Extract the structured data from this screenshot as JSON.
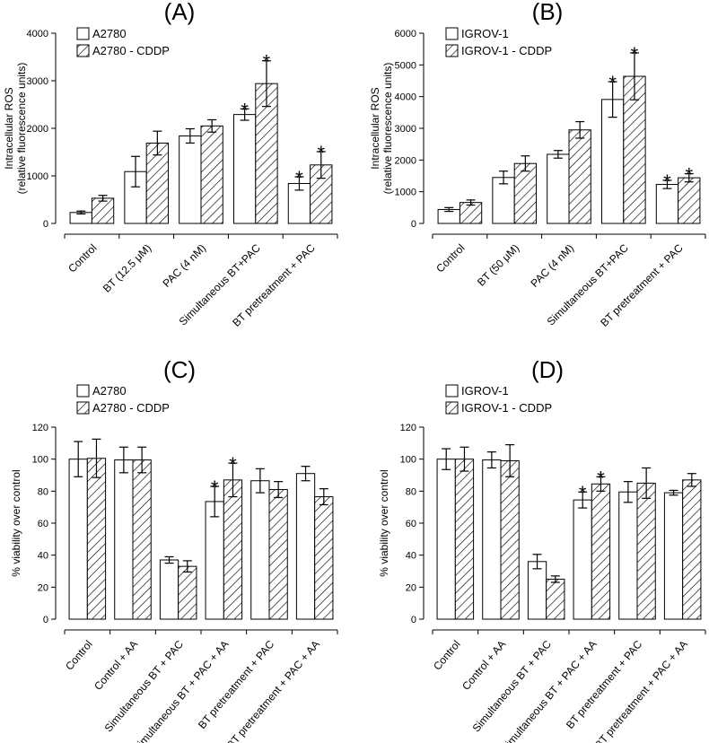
{
  "chart_data": [
    {
      "panel": "(A)",
      "type": "bar",
      "ylabel": [
        "Intracellular ROS",
        "(relative fluorescence units)"
      ],
      "ylim": [
        0,
        4000
      ],
      "yticks": [
        0,
        1000,
        2000,
        3000,
        4000
      ],
      "categories": [
        "Control",
        "BT (12.5 μM)",
        "PAC (4 nM)",
        "Simultaneous BT+PAC",
        "BT pretreatment + PAC"
      ],
      "series": [
        {
          "name": "A2780",
          "values": [
            230,
            1090,
            1840,
            2290,
            840
          ],
          "errors": [
            30,
            320,
            150,
            120,
            140
          ],
          "sig": [
            false,
            false,
            false,
            true,
            true
          ]
        },
        {
          "name": "A2780 - CDDP",
          "values": [
            530,
            1690,
            2050,
            2940,
            1230
          ],
          "errors": [
            60,
            250,
            130,
            480,
            280
          ],
          "sig": [
            false,
            false,
            false,
            true,
            true
          ]
        }
      ],
      "sig_marker": "*",
      "legend": "top-left"
    },
    {
      "panel": "(B)",
      "type": "bar",
      "ylabel": [
        "Intracellular ROS",
        "(relative fluorescence units)"
      ],
      "ylim": [
        0,
        6000
      ],
      "yticks": [
        0,
        1000,
        2000,
        3000,
        4000,
        5000,
        6000
      ],
      "categories": [
        "Control",
        "BT (50 μM)",
        "PAC (4 nM)",
        "Simultaneous BT+PAC",
        "BT pretreatment + PAC"
      ],
      "series": [
        {
          "name": "IGROV-1",
          "values": [
            440,
            1450,
            2180,
            3910,
            1230
          ],
          "errors": [
            60,
            200,
            120,
            560,
            130
          ],
          "sig": [
            false,
            false,
            false,
            true,
            true
          ]
        },
        {
          "name": "IGROV-1 - CDDP",
          "values": [
            660,
            1890,
            2950,
            4640,
            1440
          ],
          "errors": [
            80,
            240,
            260,
            740,
            130
          ],
          "sig": [
            false,
            false,
            false,
            true,
            true
          ]
        }
      ],
      "sig_marker": "*",
      "legend": "top-left"
    },
    {
      "panel": "(C)",
      "type": "bar",
      "ylabel": [
        "% viability over control"
      ],
      "ylim": [
        0,
        120
      ],
      "yticks": [
        0,
        20,
        40,
        60,
        80,
        100,
        120
      ],
      "categories": [
        "Control",
        "Control + AA",
        "Simultaneous BT + PAC",
        "Simultaneous BT + PAC + AA",
        "BT pretreatment + PAC",
        "BT pretreatment + PAC + AA"
      ],
      "series": [
        {
          "name": "A2780",
          "values": [
            100,
            99.5,
            37,
            73.5,
            86.5,
            91
          ],
          "errors": [
            11,
            8,
            2,
            9.5,
            7.5,
            4.5
          ],
          "sig": [
            false,
            false,
            false,
            true,
            false,
            false
          ]
        },
        {
          "name": "A2780 - CDDP",
          "values": [
            100.5,
            99.5,
            33,
            87,
            81,
            76.5
          ],
          "errors": [
            12,
            8,
            3.5,
            10.5,
            5,
            5
          ],
          "sig": [
            false,
            false,
            false,
            true,
            false,
            false
          ]
        }
      ],
      "sig_marker": "*",
      "legend": "top-left"
    },
    {
      "panel": "(D)",
      "type": "bar",
      "ylabel": [
        "% viability over control"
      ],
      "ylim": [
        0,
        120
      ],
      "yticks": [
        0,
        20,
        40,
        60,
        80,
        100,
        120
      ],
      "categories": [
        "Control",
        "Control + AA",
        "Simultaneous BT + PAC",
        "Simultaneous BT + PAC + AA",
        "BT pretreatment + PAC",
        "BT pretreatment + PAC + AA"
      ],
      "series": [
        {
          "name": "IGROV-1",
          "values": [
            100,
            99.5,
            36,
            74.5,
            79.5,
            79
          ],
          "errors": [
            6.5,
            5,
            4.5,
            5,
            6.5,
            1.5
          ],
          "sig": [
            false,
            false,
            false,
            true,
            false,
            false
          ]
        },
        {
          "name": "IGROV-1 - CDDP",
          "values": [
            100,
            99,
            25,
            84.5,
            85,
            87
          ],
          "errors": [
            7.5,
            10,
            2,
            4.5,
            9.5,
            4
          ],
          "sig": [
            false,
            false,
            false,
            true,
            false,
            false
          ]
        }
      ],
      "sig_marker": "*",
      "legend": "top-left"
    }
  ]
}
